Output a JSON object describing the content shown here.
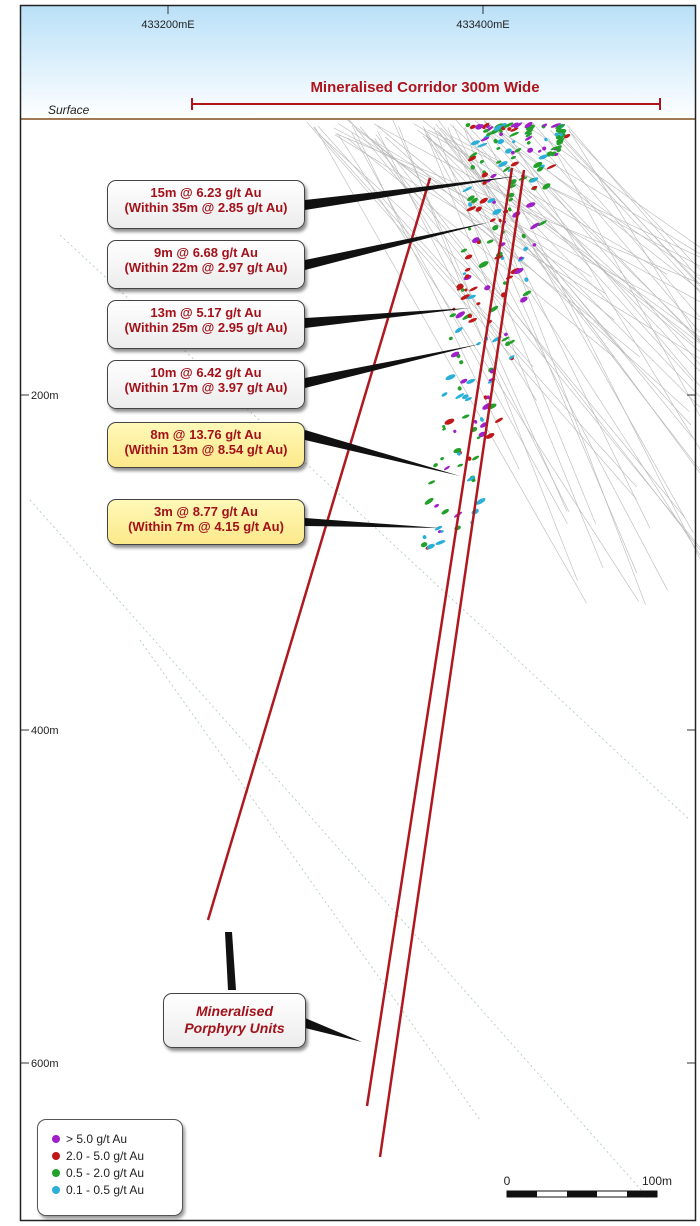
{
  "top_axis": {
    "easting_labels": [
      "433200mE",
      "433400mE"
    ]
  },
  "corridor_label": "Mineralised Corridor 300m Wide",
  "surface_label": "Surface",
  "depth_labels": [
    "200m",
    "400m",
    "600m"
  ],
  "callouts": [
    {
      "line1": "15m @ 6.23 g/t Au",
      "line2": "(Within 35m @ 2.85 g/t Au)",
      "style": "white"
    },
    {
      "line1": "9m @ 6.68 g/t Au",
      "line2": "(Within 22m @ 2.97 g/t Au)",
      "style": "white"
    },
    {
      "line1": "13m @ 5.17 g/t Au",
      "line2": "(Within 25m @ 2.95 g/t Au)",
      "style": "white"
    },
    {
      "line1": "10m @ 6.42 g/t Au",
      "line2": "(Within 17m @ 3.97 g/t Au)",
      "style": "white"
    },
    {
      "line1": "8m @ 13.76 g/t Au",
      "line2": "(Within 13m @ 8.54 g/t Au)",
      "style": "yellow"
    },
    {
      "line1": "3m @ 8.77 g/t Au",
      "line2": "(Within 7m @ 4.15 g/t Au)",
      "style": "yellow"
    }
  ],
  "porphyry_label": {
    "line1": "Mineralised",
    "line2": "Porphyry Units"
  },
  "legend": [
    {
      "label": "> 5.0 g/t Au",
      "color": "#a020c8"
    },
    {
      "label": "2.0 - 5.0 g/t Au",
      "color": "#c01818"
    },
    {
      "label": "0.5 - 2.0 g/t Au",
      "color": "#22a02a"
    },
    {
      "label": "0.1 - 0.5 g/t Au",
      "color": "#2ab0d8"
    }
  ],
  "scale_bar": {
    "start_label": "0",
    "end_label": "100m"
  },
  "colors": {
    "porphyry_line": "#b01820",
    "title_red": "#b0141b",
    "sky_top": "#bfe3f8",
    "ground_line": "#a07a55"
  }
}
